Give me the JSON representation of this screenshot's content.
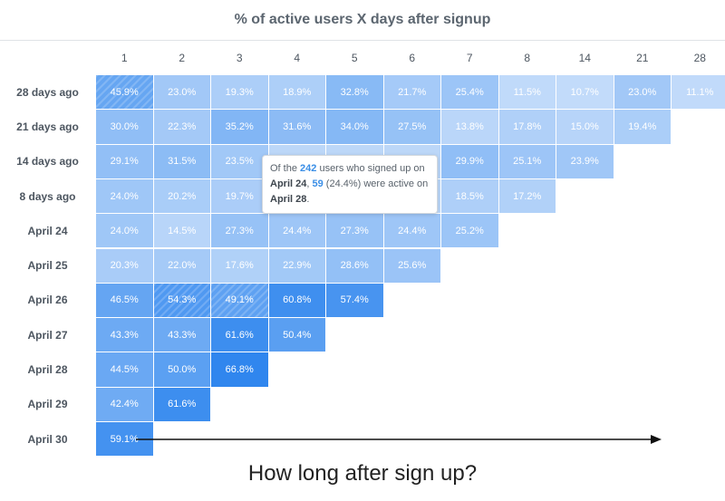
{
  "chart_data": {
    "type": "heatmap",
    "title": "% of active users X days after signup",
    "columns": [
      "1",
      "2",
      "3",
      "4",
      "5",
      "6",
      "7",
      "8",
      "14",
      "21",
      "28"
    ],
    "rows": [
      {
        "label": "28 days ago",
        "values": [
          "45.9%",
          "23.0%",
          "19.3%",
          "18.9%",
          "32.8%",
          "21.7%",
          "25.4%",
          "11.5%",
          "10.7%",
          "23.0%",
          "11.1%"
        ]
      },
      {
        "label": "21 days ago",
        "values": [
          "30.0%",
          "22.3%",
          "35.2%",
          "31.6%",
          "34.0%",
          "27.5%",
          "13.8%",
          "17.8%",
          "15.0%",
          "19.4%"
        ]
      },
      {
        "label": "14 days ago",
        "values": [
          "29.1%",
          "31.5%",
          "23.5%",
          "",
          "",
          "",
          "29.9%",
          "25.1%",
          "23.9%"
        ]
      },
      {
        "label": "8 days ago",
        "values": [
          "24.0%",
          "20.2%",
          "19.7%",
          "",
          "",
          "",
          "18.5%",
          "17.2%"
        ]
      },
      {
        "label": "April 24",
        "values": [
          "24.0%",
          "14.5%",
          "27.3%",
          "24.4%",
          "27.3%",
          "24.4%",
          "25.2%"
        ]
      },
      {
        "label": "April 25",
        "values": [
          "20.3%",
          "22.0%",
          "17.6%",
          "22.9%",
          "28.6%",
          "25.6%"
        ]
      },
      {
        "label": "April 26",
        "values": [
          "46.5%",
          "54.3%",
          "49.1%",
          "60.8%",
          "57.4%"
        ]
      },
      {
        "label": "April 27",
        "values": [
          "43.3%",
          "43.3%",
          "61.6%",
          "50.4%"
        ]
      },
      {
        "label": "April 28",
        "values": [
          "44.5%",
          "50.0%",
          "66.8%"
        ]
      },
      {
        "label": "April 29",
        "values": [
          "42.4%",
          "61.6%"
        ]
      },
      {
        "label": "April 30",
        "values": [
          "59.1%"
        ]
      }
    ],
    "hatched_cells": [
      [
        0,
        0
      ],
      [
        6,
        1
      ],
      [
        6,
        2
      ]
    ],
    "color_scale": {
      "low": "#c4dcfa",
      "high": "#2f86ee"
    },
    "value_range": [
      10,
      67
    ],
    "tooltip": {
      "t1": "Of the ",
      "users": "242",
      "t2": " users who signed up on",
      "date": "April 24",
      "t3": ", ",
      "active": "59",
      "t4": " (24.4%) were active on",
      "end_date": "April 28",
      "t5": "."
    },
    "annotation": "How long after sign up?"
  }
}
